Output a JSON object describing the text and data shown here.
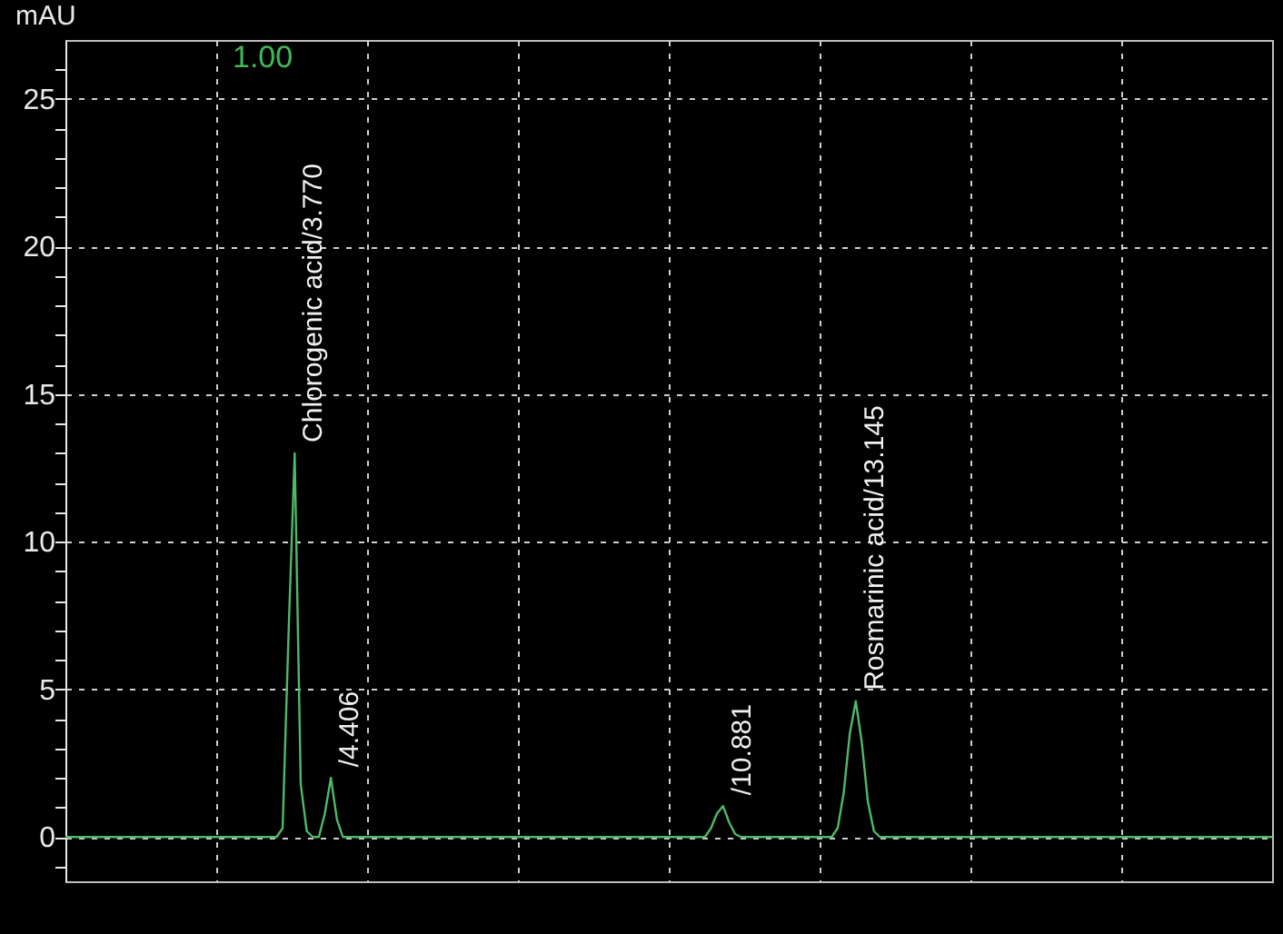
{
  "chart_data": {
    "type": "line",
    "ylabel": "mAU",
    "categories": [
      null,
      null,
      null,
      null,
      null,
      null,
      null,
      null,
      null,
      null,
      null,
      null,
      null,
      null,
      null,
      null,
      null,
      null,
      null,
      null,
      null,
      null,
      null,
      null,
      null,
      null,
      null,
      null,
      null,
      null,
      null,
      null,
      null,
      null,
      null,
      null,
      null,
      null,
      null,
      null,
      null,
      null,
      null,
      null,
      null,
      null,
      null,
      null,
      null,
      null,
      null,
      null,
      null,
      null,
      null,
      null,
      null,
      null,
      null,
      null,
      null,
      null,
      null,
      null,
      null,
      null,
      null,
      null,
      null,
      null,
      null,
      null,
      null,
      null,
      null,
      null,
      null,
      null,
      null,
      null,
      null,
      null,
      null,
      null,
      null,
      null,
      null,
      null,
      null,
      null,
      null,
      null,
      null,
      null,
      null,
      null,
      null,
      null,
      null,
      null,
      null,
      null,
      null,
      null,
      null,
      null,
      null,
      null,
      null,
      null,
      null,
      null,
      null,
      null,
      null,
      null,
      null,
      null,
      null,
      null,
      null,
      null,
      null,
      null,
      null,
      null,
      null,
      null,
      null,
      null,
      null,
      null,
      null,
      null,
      null,
      null,
      null,
      null,
      null,
      null,
      null,
      null,
      null,
      null,
      null,
      null,
      null,
      null,
      null,
      null,
      null,
      null,
      null,
      null,
      null,
      null,
      null,
      null,
      null,
      null,
      null,
      null,
      null,
      null,
      null,
      null,
      null,
      null,
      null,
      null,
      null,
      null,
      null,
      null,
      null,
      null,
      null,
      null,
      null,
      null,
      null,
      null,
      null,
      null,
      null,
      null,
      null,
      null,
      null,
      null,
      null,
      null,
      null,
      null,
      null,
      null,
      null,
      null,
      null,
      null,
      null
    ],
    "series": [
      {
        "color": "#4fb86a",
        "values": [
          0,
          0,
          0,
          0,
          0,
          0,
          0,
          0,
          0,
          0,
          0,
          0,
          0,
          0,
          0,
          0,
          0,
          0,
          0,
          0,
          0,
          0,
          0,
          0,
          0,
          0,
          0,
          0,
          0,
          0,
          0,
          0,
          0,
          0,
          0,
          0,
          0.3,
          7,
          13,
          1.8,
          0.2,
          0,
          0,
          0.8,
          2,
          0.6,
          0,
          0,
          0,
          0,
          0,
          0,
          0,
          0,
          0,
          0,
          0,
          0,
          0,
          0,
          0,
          0,
          0,
          0,
          0,
          0,
          0,
          0,
          0,
          0,
          0,
          0,
          0,
          0,
          0,
          0,
          0,
          0,
          0,
          0,
          0,
          0,
          0,
          0,
          0,
          0,
          0,
          0,
          0,
          0,
          0,
          0,
          0,
          0,
          0,
          0,
          0,
          0,
          0,
          0,
          0,
          0,
          0,
          0,
          0,
          0,
          0,
          0.3,
          0.8,
          1.05,
          0.5,
          0.1,
          0,
          0,
          0,
          0,
          0,
          0,
          0,
          0,
          0,
          0,
          0,
          0,
          0,
          0,
          0,
          0,
          0.3,
          1.5,
          3.5,
          4.6,
          3.2,
          1.2,
          0.2,
          0,
          0,
          0,
          0,
          0,
          0,
          0,
          0,
          0,
          0,
          0,
          0,
          0,
          0,
          0,
          0,
          0,
          0,
          0,
          0,
          0,
          0,
          0,
          0,
          0,
          0,
          0,
          0,
          0,
          0,
          0,
          0,
          0,
          0,
          0,
          0,
          0,
          0,
          0,
          0,
          0,
          0,
          0,
          0,
          0,
          0,
          0,
          0,
          0,
          0,
          0,
          0,
          0,
          0,
          0,
          0,
          0,
          0,
          0,
          0,
          0,
          0,
          0,
          0,
          0,
          0
        ]
      }
    ],
    "ylim": [
      -1.5,
      27
    ],
    "yticks": [
      {
        "value": -1,
        "label": null
      },
      0,
      {
        "value": 1,
        "label": null
      },
      {
        "value": 2,
        "label": null
      },
      {
        "value": 3,
        "label": null
      },
      {
        "value": 4,
        "label": null
      },
      5,
      {
        "value": 6,
        "label": null
      },
      {
        "value": 7,
        "label": null
      },
      {
        "value": 8,
        "label": null
      },
      {
        "value": 9,
        "label": null
      },
      10,
      {
        "value": 11,
        "label": null
      },
      {
        "value": 12,
        "label": null
      },
      {
        "value": 13,
        "label": null
      },
      {
        "value": 14,
        "label": null
      },
      15,
      {
        "value": 16,
        "label": null
      },
      {
        "value": 17,
        "label": null
      },
      {
        "value": 18,
        "label": null
      },
      {
        "value": 19,
        "label": null
      },
      20,
      {
        "value": 21,
        "label": null
      },
      {
        "value": 22,
        "label": null
      },
      {
        "value": 23,
        "label": null
      },
      {
        "value": 24,
        "label": null
      },
      25,
      {
        "value": 26,
        "label": null
      }
    ],
    "tick_labels": "y",
    "grid": true,
    "annotations": [
      "1.00",
      "Chlorogenic acid/3.770",
      "/4.406",
      "/10.881",
      "Rosmarinic acid/13.145"
    ]
  }
}
